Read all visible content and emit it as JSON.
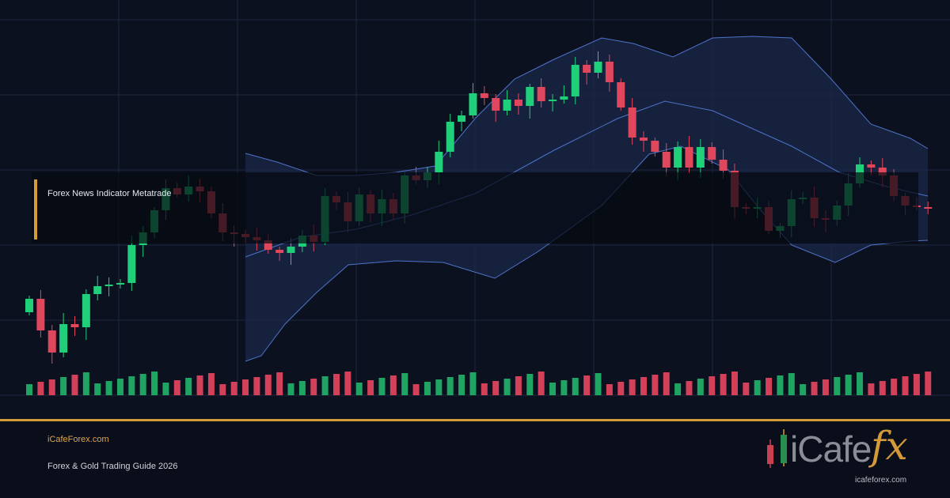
{
  "banner": {
    "title": "Forex News Indicator Metatrade"
  },
  "footer": {
    "site": "iCafeForex.com",
    "subtitle": "Forex & Gold Trading Guide 2026"
  },
  "logo": {
    "word": "iCafe",
    "mark": "fx",
    "url": "icafeforex.com"
  }
}
